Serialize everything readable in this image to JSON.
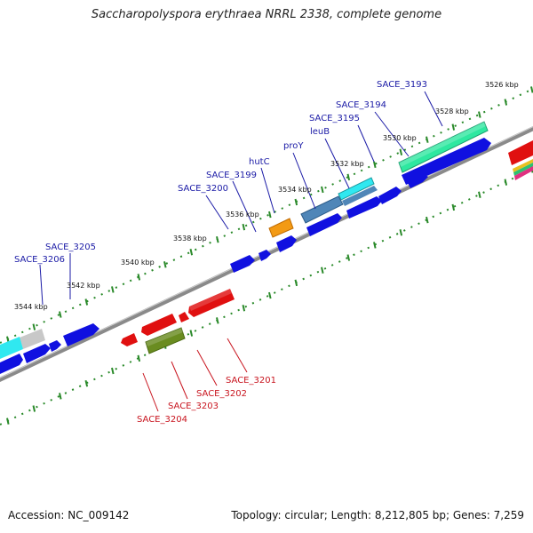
{
  "title": "Saccharopolyspora erythraea NRRL 2338, complete genome",
  "footer": {
    "accession": "Accession: NC_009142",
    "topology": "Topology: circular; Length: 8,212,805 bp; Genes: 7,259"
  },
  "ticks": [
    "3526 kbp",
    "3528 kbp",
    "3530 kbp",
    "3532 kbp",
    "3534 kbp",
    "3536 kbp",
    "3538 kbp",
    "3540 kbp",
    "3542 kbp",
    "3544 kbp"
  ],
  "forward_labels": [
    "SACE_3193",
    "SACE_3194",
    "SACE_3195",
    "leuB",
    "proY",
    "hutC",
    "SACE_3199",
    "SACE_3200",
    "SACE_3205",
    "SACE_3206"
  ],
  "reverse_labels": [
    "SACE_3201",
    "SACE_3202",
    "SACE_3203",
    "SACE_3204"
  ],
  "colors": {
    "forward": "#1010e0",
    "reverse": "#e01010",
    "teal": "#2ee8a0",
    "cyan": "#30e8f0",
    "steel": "#4f86b8",
    "orange": "#f39a14",
    "olive": "#6a8c20",
    "gray": "#c8c8c8",
    "backbone": "#808080",
    "dots": "#2a8a2a"
  }
}
